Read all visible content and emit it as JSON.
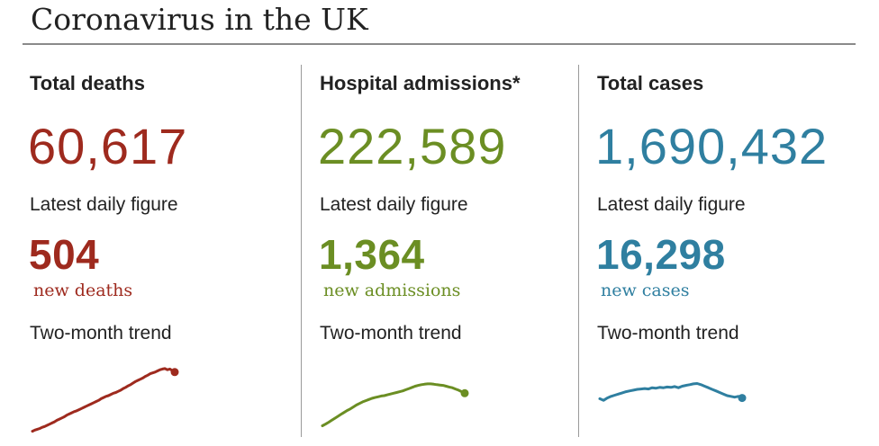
{
  "header": {
    "title": "Coronavirus in the UK"
  },
  "chart_data": [
    {
      "type": "line",
      "name": "deaths",
      "title": "Total deaths",
      "total": "60,617",
      "daily_label": "Latest daily figure",
      "daily_value": "504",
      "daily_unit": "new deaths",
      "trend_label": "Two-month trend",
      "color": "#9e2a1e",
      "values": [
        1,
        4,
        6,
        8,
        11,
        13,
        16,
        19,
        22,
        25,
        29,
        32,
        35,
        38,
        42,
        45,
        48,
        51,
        53,
        56,
        59,
        62,
        65,
        68,
        71,
        74,
        77,
        80,
        84,
        87,
        90,
        92,
        95,
        98,
        100,
        103,
        106,
        110,
        113,
        117,
        120,
        124,
        128,
        131,
        134,
        137,
        141,
        144,
        148,
        150,
        152,
        155,
        158,
        160,
        161,
        158,
        160,
        156,
        152
      ]
    },
    {
      "type": "line",
      "name": "admissions",
      "title": "Hospital admissions*",
      "total": "222,589",
      "daily_label": "Latest daily figure",
      "daily_value": "1,364",
      "daily_unit": "new admissions",
      "trend_label": "Two-month trend",
      "color": "#6b8e23",
      "values": [
        15,
        19,
        24,
        29,
        34,
        39,
        44,
        49,
        54,
        58,
        63,
        68,
        72,
        76,
        79,
        82,
        85,
        87,
        89,
        91,
        92,
        94,
        96,
        98,
        100,
        102,
        104,
        107,
        110,
        113,
        116,
        118,
        120,
        121,
        122,
        122,
        121,
        120,
        119,
        118,
        116,
        114,
        112,
        109,
        106,
        102,
        98
      ]
    },
    {
      "type": "line",
      "name": "cases",
      "title": "Total cases",
      "total": "1,690,432",
      "daily_label": "Latest daily figure",
      "daily_value": "16,298",
      "daily_unit": "new cases",
      "trend_label": "Two-month trend",
      "color": "#2f7fa0",
      "values": [
        84,
        80,
        86,
        90,
        93,
        96,
        99,
        102,
        104,
        106,
        108,
        109,
        110,
        109,
        112,
        111,
        113,
        112,
        114,
        113,
        115,
        112,
        116,
        118,
        120,
        122,
        123,
        120,
        116,
        112,
        108,
        104,
        100,
        96,
        92,
        90,
        88,
        90,
        86
      ]
    }
  ]
}
